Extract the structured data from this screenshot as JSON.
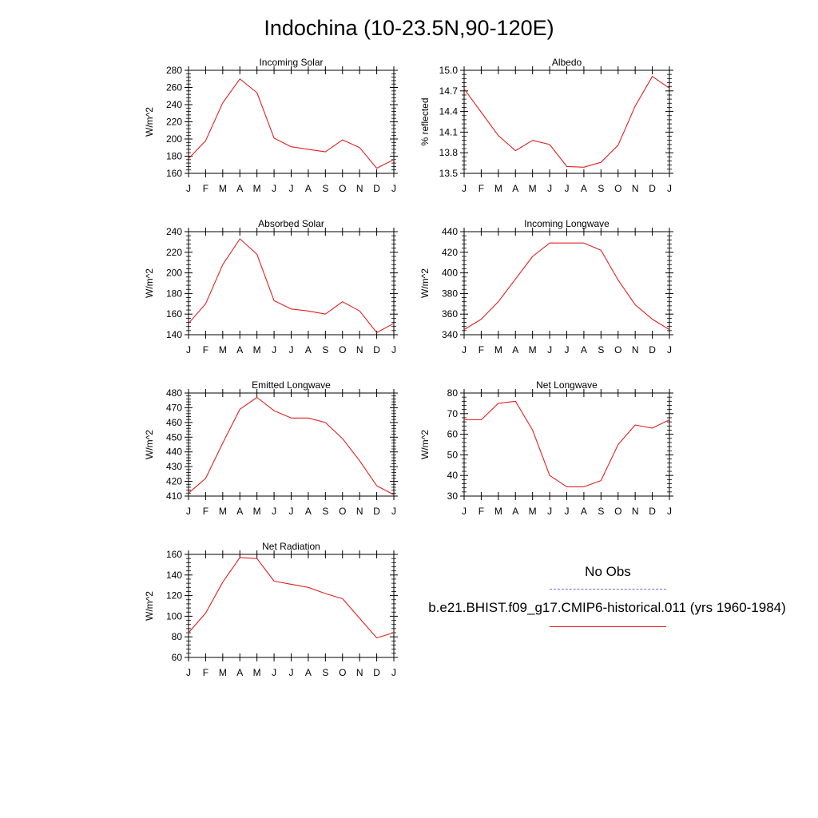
{
  "title": "Indochina (10-23.5N,90-120E)",
  "legend": {
    "obs_label": "No Obs",
    "obs_color": "#6a6af0",
    "model_label": "b.e21.BHIST.f09_g17.CMIP6-historical.011 (yrs 1960-1984)",
    "model_color": "#e02020"
  },
  "chart_data": [
    {
      "type": "line",
      "title": "Incoming Solar",
      "ylabel": "W/m^2",
      "x": [
        "J",
        "F",
        "M",
        "A",
        "M",
        "J",
        "J",
        "A",
        "S",
        "O",
        "N",
        "D",
        "J"
      ],
      "ylim": [
        160,
        280
      ],
      "yticks": [
        160,
        180,
        200,
        220,
        240,
        260,
        280
      ],
      "series": [
        {
          "values": [
            177,
            198,
            242,
            270,
            254,
            201,
            191,
            188,
            185,
            199,
            190,
            166,
            176
          ],
          "color": "#e02020"
        }
      ]
    },
    {
      "type": "line",
      "title": "Albedo",
      "ylabel": "% reflected",
      "x": [
        "J",
        "F",
        "M",
        "A",
        "M",
        "J",
        "J",
        "A",
        "S",
        "O",
        "N",
        "D",
        "J"
      ],
      "ylim": [
        13.5,
        15.0
      ],
      "yticks": [
        "13.5",
        "13.8",
        "14.1",
        "14.4",
        "14.7",
        "15.0"
      ],
      "series": [
        {
          "values": [
            14.73,
            14.39,
            14.05,
            13.83,
            13.98,
            13.92,
            13.6,
            13.59,
            13.66,
            13.91,
            14.48,
            14.91,
            14.74
          ],
          "color": "#e02020"
        }
      ]
    },
    {
      "type": "line",
      "title": "Absorbed Solar",
      "ylabel": "W/m^2",
      "x": [
        "J",
        "F",
        "M",
        "A",
        "M",
        "J",
        "J",
        "A",
        "S",
        "O",
        "N",
        "D",
        "J"
      ],
      "ylim": [
        140,
        240
      ],
      "yticks": [
        140,
        160,
        180,
        200,
        220,
        240
      ],
      "series": [
        {
          "values": [
            151,
            170,
            208,
            233,
            218,
            173,
            165,
            163,
            160,
            172,
            163,
            142,
            151
          ],
          "color": "#e02020"
        }
      ]
    },
    {
      "type": "line",
      "title": "Incoming Longwave",
      "ylabel": "W/m^2",
      "x": [
        "J",
        "F",
        "M",
        "A",
        "M",
        "J",
        "J",
        "A",
        "S",
        "O",
        "N",
        "D",
        "J"
      ],
      "ylim": [
        340,
        440
      ],
      "yticks": [
        340,
        360,
        380,
        400,
        420,
        440
      ],
      "series": [
        {
          "values": [
            345,
            355,
            372,
            394,
            416,
            429,
            429,
            429,
            422,
            393,
            369,
            355,
            345
          ],
          "color": "#e02020"
        }
      ]
    },
    {
      "type": "line",
      "title": "Emitted Longwave",
      "ylabel": "W/m^2",
      "x": [
        "J",
        "F",
        "M",
        "A",
        "M",
        "J",
        "J",
        "A",
        "S",
        "O",
        "N",
        "D",
        "J"
      ],
      "ylim": [
        410,
        480
      ],
      "yticks": [
        410,
        420,
        430,
        440,
        450,
        460,
        470,
        480
      ],
      "series": [
        {
          "values": [
            412,
            422,
            446,
            469,
            477,
            468,
            463,
            463,
            460,
            449,
            434,
            417,
            411
          ],
          "color": "#e02020"
        }
      ]
    },
    {
      "type": "line",
      "title": "Net Longwave",
      "ylabel": "W/m^2",
      "x": [
        "J",
        "F",
        "M",
        "A",
        "M",
        "J",
        "J",
        "A",
        "S",
        "O",
        "N",
        "D",
        "J"
      ],
      "ylim": [
        30,
        80
      ],
      "yticks": [
        30,
        40,
        50,
        60,
        70,
        80
      ],
      "series": [
        {
          "values": [
            67,
            67,
            75,
            76,
            62,
            40,
            34.5,
            34.5,
            37.5,
            55,
            64.5,
            63,
            67
          ],
          "color": "#e02020"
        }
      ]
    },
    {
      "type": "line",
      "title": "Net Radiation",
      "ylabel": "W/m^2",
      "x": [
        "J",
        "F",
        "M",
        "A",
        "M",
        "J",
        "J",
        "A",
        "S",
        "O",
        "N",
        "D",
        "J"
      ],
      "ylim": [
        60,
        160
      ],
      "yticks": [
        60,
        80,
        100,
        120,
        140,
        160
      ],
      "series": [
        {
          "values": [
            84,
            103,
            133,
            157,
            156,
            134,
            131,
            128,
            122,
            117,
            98,
            79,
            84
          ],
          "color": "#e02020"
        }
      ]
    }
  ]
}
